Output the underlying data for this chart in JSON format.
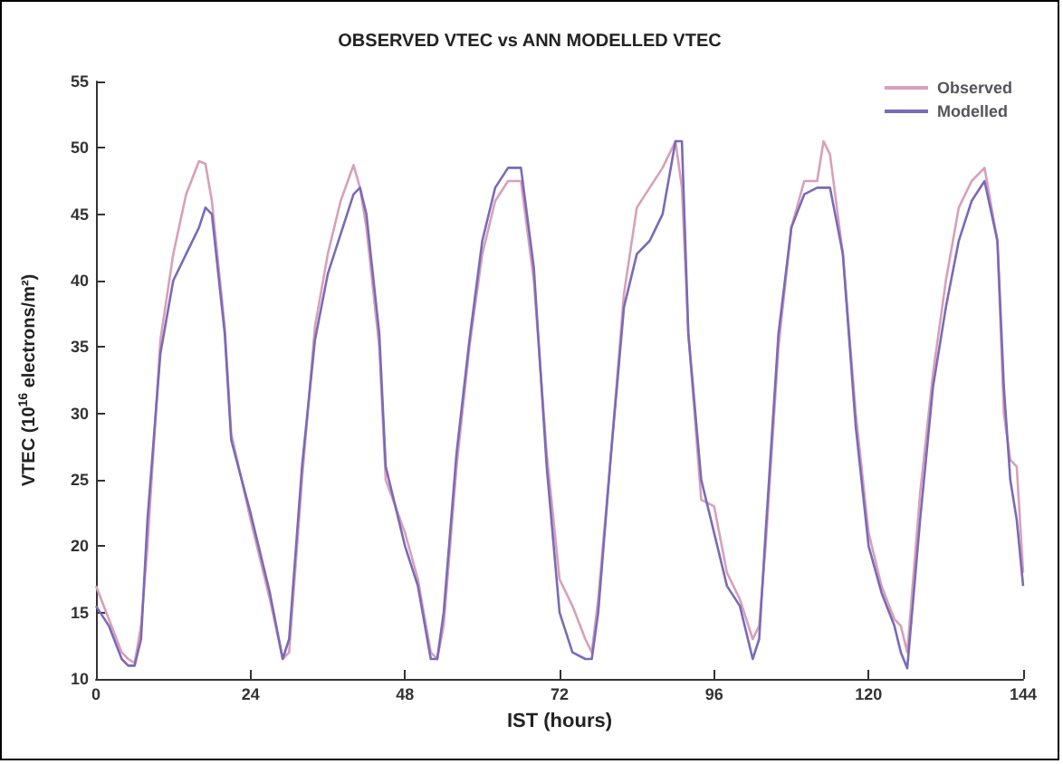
{
  "chart_data": {
    "type": "line",
    "title": "OBSERVED VTEC vs ANN MODELLED VTEC",
    "xlabel": "IST (hours)",
    "ylabel": "VTEC (10$^{16}$ electrons/m²)",
    "x": [
      0,
      2,
      4,
      5,
      6,
      7,
      8,
      10,
      12,
      14,
      16,
      17,
      18,
      20,
      21,
      24,
      27,
      29,
      30,
      32,
      34,
      36,
      38,
      40,
      41,
      42,
      44,
      45,
      48,
      50,
      52,
      53,
      54,
      56,
      58,
      60,
      62,
      64,
      66,
      68,
      70,
      72,
      74,
      76,
      77,
      78,
      80,
      82,
      84,
      86,
      88,
      90,
      91,
      92,
      94,
      96,
      98,
      100,
      102,
      103,
      104,
      106,
      108,
      110,
      112,
      113,
      114,
      116,
      118,
      120,
      122,
      124,
      125,
      126,
      128,
      130,
      132,
      134,
      136,
      138,
      140,
      141,
      142,
      143,
      144
    ],
    "series": [
      {
        "name": "Observed",
        "color": "#d8a0b8",
        "values": [
          17,
          14.5,
          12,
          11.5,
          11.2,
          14,
          20,
          35.5,
          42,
          46.5,
          49,
          48.8,
          46,
          36.5,
          28.5,
          22,
          16,
          11.5,
          12,
          25,
          36.5,
          42,
          46,
          48.7,
          47,
          44,
          35,
          25,
          21,
          17.5,
          12,
          11.5,
          14,
          26,
          35,
          42,
          46,
          47.5,
          47.5,
          40,
          27,
          17.5,
          15.5,
          13,
          12,
          16,
          27,
          39,
          45.5,
          47,
          48.5,
          50.5,
          47,
          36,
          23.5,
          23,
          18,
          16,
          13,
          14,
          20,
          35,
          44,
          47.5,
          47.5,
          50.5,
          49.5,
          42,
          30,
          21,
          17,
          14.5,
          14,
          12,
          24,
          33,
          40,
          45.5,
          47.5,
          48.5,
          43,
          30,
          26.5,
          26,
          18
        ]
      },
      {
        "name": "Modelled",
        "color": "#7a6ab8",
        "values": [
          15.5,
          14,
          11.5,
          11,
          11,
          13,
          22,
          34.5,
          40,
          42,
          44,
          45.5,
          45,
          36,
          28,
          22.5,
          16.5,
          11.5,
          13,
          26,
          35.5,
          40.5,
          43.5,
          46.5,
          47,
          45,
          36,
          26,
          20,
          17,
          11.5,
          11.5,
          15,
          27,
          35.5,
          43,
          47,
          48.5,
          48.5,
          41,
          26,
          15,
          12,
          11.5,
          11.5,
          15,
          27,
          38,
          42,
          43,
          45,
          50.5,
          50.5,
          36,
          25,
          21,
          17,
          15.5,
          11.5,
          13,
          21,
          36,
          44,
          46.5,
          47,
          47,
          47,
          42,
          29,
          20,
          16.5,
          14,
          12,
          10.8,
          22,
          32,
          38,
          43,
          46,
          47.5,
          43,
          32,
          25,
          22,
          17
        ]
      }
    ],
    "xlim": [
      0,
      144
    ],
    "xticks": [
      0,
      24,
      48,
      72,
      96,
      120,
      144
    ],
    "ylim": [
      10,
      55
    ],
    "yticks": [
      10,
      15,
      20,
      25,
      30,
      35,
      40,
      45,
      50,
      55
    ],
    "grid": false,
    "legend": "top right",
    "marker": "none",
    "line_style": "solid"
  }
}
